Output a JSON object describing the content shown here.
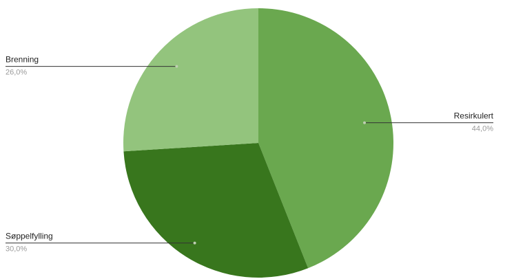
{
  "chart_data": {
    "type": "pie",
    "title": "",
    "slices": [
      {
        "label": "Resirkulert",
        "value": 44.0,
        "value_label": "44,0%",
        "color": "#6aa84f"
      },
      {
        "label": "Søppelfylling",
        "value": 30.0,
        "value_label": "30,0%",
        "color": "#38761d"
      },
      {
        "label": "Brenning",
        "value": 26.0,
        "value_label": "26,0%",
        "color": "#93c47d"
      }
    ],
    "start": "top",
    "direction": "clockwise",
    "legend": "none",
    "labels": "outside-with-leader-lines"
  }
}
